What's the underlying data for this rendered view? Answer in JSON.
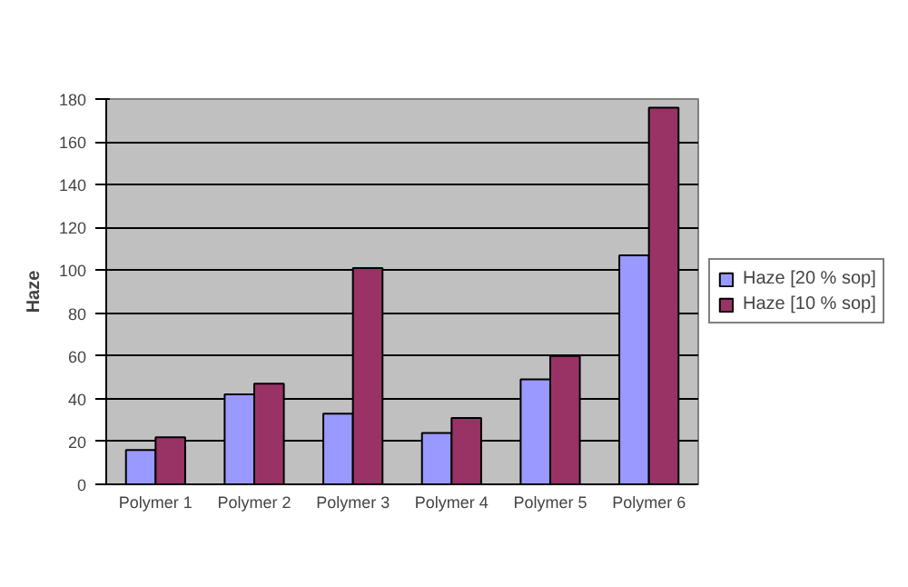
{
  "chart_data": {
    "type": "bar",
    "ylabel": "Haze",
    "categories": [
      "Polymer 1",
      "Polymer 2",
      "Polymer 3",
      "Polymer 4",
      "Polymer 5",
      "Polymer 6"
    ],
    "series": [
      {
        "name": "Haze [20 % sop]",
        "color": "#9999ff",
        "values": [
          16,
          42,
          33,
          24,
          49,
          107
        ]
      },
      {
        "name": "Haze [10 % sop]",
        "color": "#993366",
        "values": [
          22,
          47,
          101,
          31,
          60,
          176
        ]
      }
    ],
    "ylim": [
      0,
      180
    ],
    "yticks": [
      0,
      20,
      40,
      60,
      80,
      100,
      120,
      140,
      160,
      180
    ],
    "grid": "y",
    "legend": "right"
  }
}
